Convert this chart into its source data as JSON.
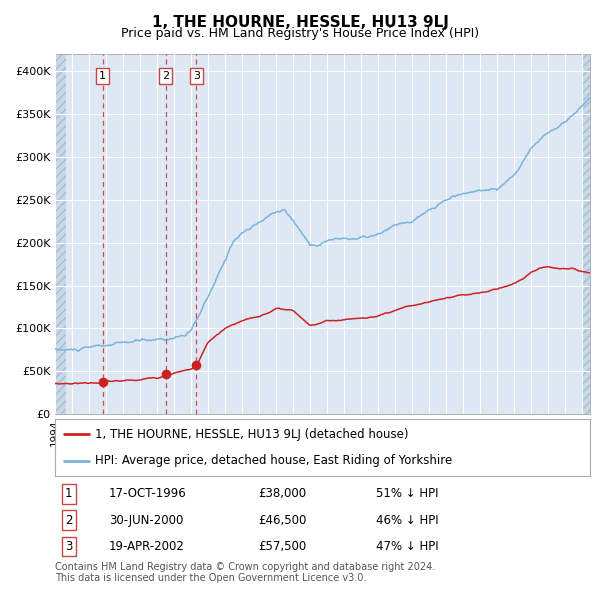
{
  "title": "1, THE HOURNE, HESSLE, HU13 9LJ",
  "subtitle": "Price paid vs. HM Land Registry's House Price Index (HPI)",
  "bg_color": "#dde8f4",
  "grid_color": "#ffffff",
  "hpi_color": "#7ab3db",
  "price_color": "#cc2222",
  "ylim": [
    0,
    420000
  ],
  "yticks": [
    0,
    50000,
    100000,
    150000,
    200000,
    250000,
    300000,
    350000,
    400000
  ],
  "ytick_labels": [
    "£0",
    "£50K",
    "£100K",
    "£150K",
    "£200K",
    "£250K",
    "£300K",
    "£350K",
    "£400K"
  ],
  "xmin": 1994.0,
  "xmax": 2025.5,
  "purchases": [
    {
      "date_year": 1996.79,
      "price": 38000,
      "label": "1"
    },
    {
      "date_year": 2000.5,
      "price": 46500,
      "label": "2"
    },
    {
      "date_year": 2002.3,
      "price": 57500,
      "label": "3"
    }
  ],
  "legend_house": "1, THE HOURNE, HESSLE, HU13 9LJ (detached house)",
  "legend_hpi": "HPI: Average price, detached house, East Riding of Yorkshire",
  "table_rows": [
    {
      "num": "1",
      "date": "17-OCT-1996",
      "price": "£38,000",
      "pct": "51% ↓ HPI"
    },
    {
      "num": "2",
      "date": "30-JUN-2000",
      "price": "£46,500",
      "pct": "46% ↓ HPI"
    },
    {
      "num": "3",
      "date": "19-APR-2002",
      "price": "£57,500",
      "pct": "47% ↓ HPI"
    }
  ],
  "footer": "Contains HM Land Registry data © Crown copyright and database right 2024.\nThis data is licensed under the Open Government Licence v3.0."
}
